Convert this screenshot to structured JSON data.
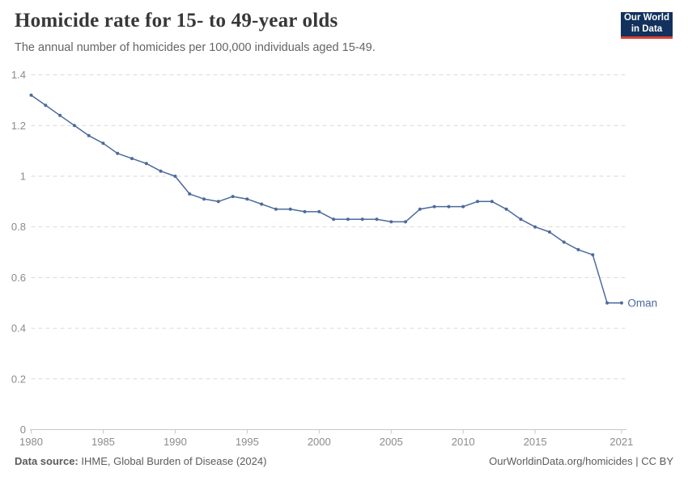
{
  "header": {
    "logo": {
      "line1": "Our World",
      "line2": "in Data",
      "bg_color": "#12315c",
      "accent_color": "#dc3e34"
    }
  },
  "footer": {
    "source_label": "Data source:",
    "source_text": " IHME, Global Burden of Disease (2024)",
    "credit": "OurWorldinData.org/homicides | CC BY"
  },
  "chart_data": {
    "type": "line",
    "title": "Homicide rate for 15- to 49-year olds",
    "subtitle": "The annual number of homicides per 100,000 individuals aged 15-49.",
    "xlabel": "",
    "ylabel": "",
    "x": [
      1980,
      1981,
      1982,
      1983,
      1984,
      1985,
      1986,
      1987,
      1988,
      1989,
      1990,
      1991,
      1992,
      1993,
      1994,
      1995,
      1996,
      1997,
      1998,
      1999,
      2000,
      2001,
      2002,
      2003,
      2004,
      2005,
      2006,
      2007,
      2008,
      2009,
      2010,
      2011,
      2012,
      2013,
      2014,
      2015,
      2016,
      2017,
      2018,
      2019,
      2020,
      2021
    ],
    "series": [
      {
        "name": "Oman",
        "color": "#4C6A9C",
        "values": [
          1.32,
          1.28,
          1.24,
          1.2,
          1.16,
          1.13,
          1.09,
          1.07,
          1.05,
          1.02,
          1.0,
          0.93,
          0.91,
          0.9,
          0.92,
          0.91,
          0.89,
          0.87,
          0.87,
          0.86,
          0.86,
          0.83,
          0.83,
          0.83,
          0.83,
          0.82,
          0.82,
          0.87,
          0.88,
          0.88,
          0.88,
          0.9,
          0.9,
          0.87,
          0.83,
          0.8,
          0.78,
          0.74,
          0.71,
          0.69,
          0.5,
          0.5
        ]
      }
    ],
    "xlim": [
      1980,
      2021
    ],
    "ylim": [
      0,
      1.4
    ],
    "xticks": [
      1980,
      1985,
      1990,
      1995,
      2000,
      2005,
      2010,
      2015,
      2021
    ],
    "yticks": [
      0,
      0.2,
      0.4,
      0.6,
      0.8,
      1,
      1.2,
      1.4
    ],
    "grid": "horizontal-dashed",
    "legend": "end-of-line-label",
    "style": {
      "grid_color": "#dadada",
      "axis_color": "#c8c8c8",
      "tick_label_color": "#8b8b8b",
      "tick_font_size": 13
    }
  }
}
